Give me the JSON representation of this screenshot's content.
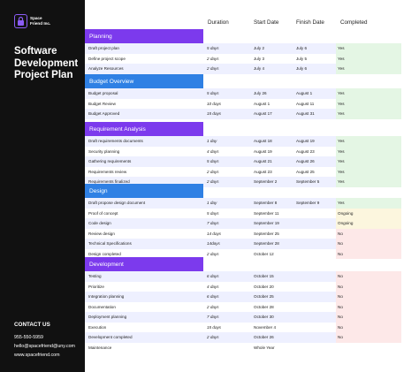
{
  "brand": {
    "logo_text": "Space Friend Inc."
  },
  "doc": {
    "title": "Software Development Project Plan"
  },
  "contact": {
    "heading": "CONTACT US",
    "phone": "955-550-5959",
    "email": "hello@spacefriend@uny.com",
    "website": "www.spacefriend.com"
  },
  "columns": {
    "duration": "Duration",
    "start": "Start Date",
    "finish": "Finish Date",
    "completed": "Completed"
  },
  "colors": {
    "purple": "#7c3aed",
    "blue": "#2f80e4",
    "yes": "#e4f6e4",
    "ongoing": "#fcf6de",
    "no": "#fde8e8"
  },
  "sections": [
    {
      "title": "Planning",
      "color": "purple",
      "rows": [
        {
          "task": "Draft project plan",
          "duration": "5 days",
          "start": "July 2",
          "finish": "July 6",
          "completed": "Yes"
        },
        {
          "task": "Define project scope",
          "duration": "2 days",
          "start": "July 3",
          "finish": "July 5",
          "completed": "Yes"
        },
        {
          "task": "Analyze Resources",
          "duration": "2 days",
          "start": "July 4",
          "finish": "July 6",
          "completed": "Yes"
        }
      ]
    },
    {
      "title": "Budget Overview",
      "color": "blue",
      "rows": [
        {
          "task": "Budget proposal",
          "duration": "5 days",
          "start": "July 26",
          "finish": "August 1",
          "completed": "Yes"
        },
        {
          "task": "Budget Review",
          "duration": "10 days",
          "start": "August 1",
          "finish": "August 11",
          "completed": "Yes"
        },
        {
          "task": "Budget Approved",
          "duration": "15 days",
          "start": "August 17",
          "finish": "August 31",
          "completed": "Yes"
        }
      ]
    },
    {
      "title": "Requirement Analysis",
      "color": "purple",
      "rows": [
        {
          "task": "Draft requirements documents",
          "duration": "1 day",
          "start": "August 18",
          "finish": "August 19",
          "completed": "Yes"
        },
        {
          "task": "Security planning",
          "duration": "4 days",
          "start": "August 19",
          "finish": "August 23",
          "completed": "Yes"
        },
        {
          "task": "Gathering requirements",
          "duration": "5 days",
          "start": "August 21",
          "finish": "August 26",
          "completed": "Yes"
        },
        {
          "task": "Requirements review",
          "duration": "2 days",
          "start": "August 23",
          "finish": "August 25",
          "completed": "Yes"
        },
        {
          "task": "Requirements finalized",
          "duration": "2 days",
          "start": "September 2",
          "finish": "September 5",
          "completed": "Yes"
        }
      ]
    },
    {
      "title": "Design",
      "color": "blue",
      "rows": [
        {
          "task": "Draft propose design document",
          "duration": "1 day",
          "start": "September 8",
          "finish": "September 9",
          "completed": "Yes"
        },
        {
          "task": "Proof of concept",
          "duration": "5 days",
          "start": "September 11",
          "finish": "",
          "completed": "Ongoing"
        },
        {
          "task": "Code design",
          "duration": "7 days",
          "start": "September 19",
          "finish": "",
          "completed": "Ongoing"
        },
        {
          "task": "Review design",
          "duration": "14 days",
          "start": "September 25",
          "finish": "",
          "completed": "No"
        },
        {
          "task": "Technical Specifications",
          "duration": "14days",
          "start": "September 28",
          "finish": "",
          "completed": "No"
        },
        {
          "task": "Design completed",
          "duration": "2 days",
          "start": "October 12",
          "finish": "",
          "completed": "No"
        }
      ]
    },
    {
      "title": "Development",
      "color": "purple",
      "rows": [
        {
          "task": "Testing",
          "duration": "6 days",
          "start": "October 15",
          "finish": "",
          "completed": "No"
        },
        {
          "task": "Prioritize",
          "duration": "4 days",
          "start": "October 20",
          "finish": "",
          "completed": "No"
        },
        {
          "task": "Integration planning",
          "duration": "6 days",
          "start": "October 25",
          "finish": "",
          "completed": "No"
        },
        {
          "task": "Documentation",
          "duration": "2 days",
          "start": "October 28",
          "finish": "",
          "completed": "No"
        },
        {
          "task": "Deployment planning",
          "duration": "7 days",
          "start": "October 30",
          "finish": "",
          "completed": "No"
        },
        {
          "task": "Execution",
          "duration": "15 days",
          "start": "November 4",
          "finish": "",
          "completed": "No"
        },
        {
          "task": "Development completed",
          "duration": "2 days",
          "start": "October 26",
          "finish": "",
          "completed": "No"
        },
        {
          "task": "Maintenance",
          "duration": "",
          "start": "Whole Year",
          "finish": "",
          "completed": ""
        }
      ]
    }
  ]
}
